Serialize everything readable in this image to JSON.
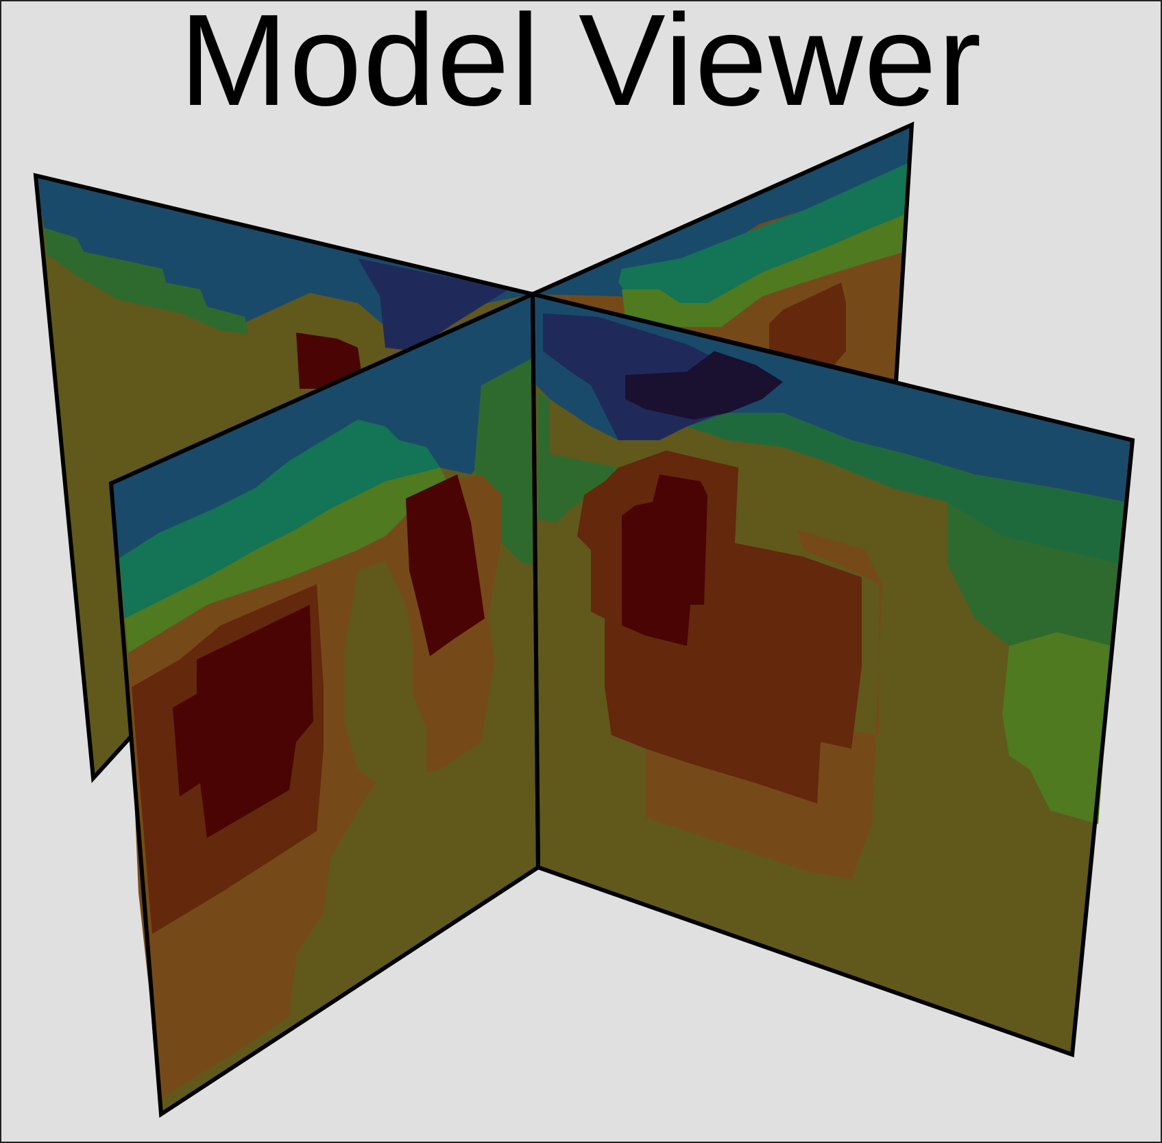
{
  "window": {
    "title": "Model Viewer"
  },
  "scene": {
    "panels": [
      "slice-back-left",
      "slice-back-right",
      "slice-front-left",
      "slice-front-right"
    ]
  },
  "colors": {
    "background": "#e0e0e0",
    "outline": "#000000",
    "deep_blue": "#1a4a6a",
    "indigo": "#1f2a5a",
    "near_black": "#1a1030",
    "teal": "#137456",
    "dark_green": "#1f6a3c",
    "forest_green": "#2e6a2e",
    "yellow_green": "#4f7a20",
    "olive": "#61581c",
    "brown": "#764a18",
    "rust": "#64280c",
    "dark_red": "#4a0404"
  }
}
